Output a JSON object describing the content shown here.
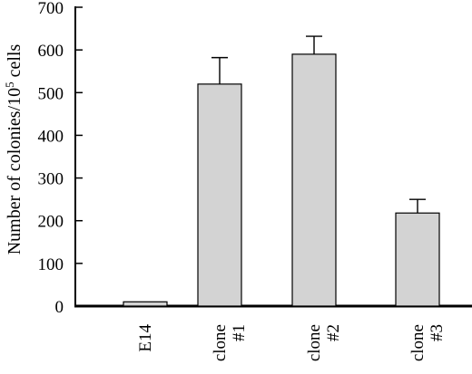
{
  "chart_data": {
    "type": "bar",
    "title": "",
    "xlabel": "",
    "ylabel": "Number of colonies/10",
    "ylabel_superscript": "5",
    "ylabel_suffix": " cells",
    "ylim": [
      0,
      700
    ],
    "yticks": [
      0,
      100,
      200,
      300,
      400,
      500,
      600,
      700
    ],
    "categories": [
      {
        "line1": "E14",
        "line2": ""
      },
      {
        "line1": "clone",
        "line2": "#1"
      },
      {
        "line1": "clone",
        "line2": "#2"
      },
      {
        "line1": "clone",
        "line2": "#3"
      }
    ],
    "values": [
      10,
      520,
      590,
      218
    ],
    "error_upper": [
      0,
      62,
      42,
      32
    ],
    "bar_color": "#d3d3d3",
    "grid": false,
    "legend": "none"
  }
}
